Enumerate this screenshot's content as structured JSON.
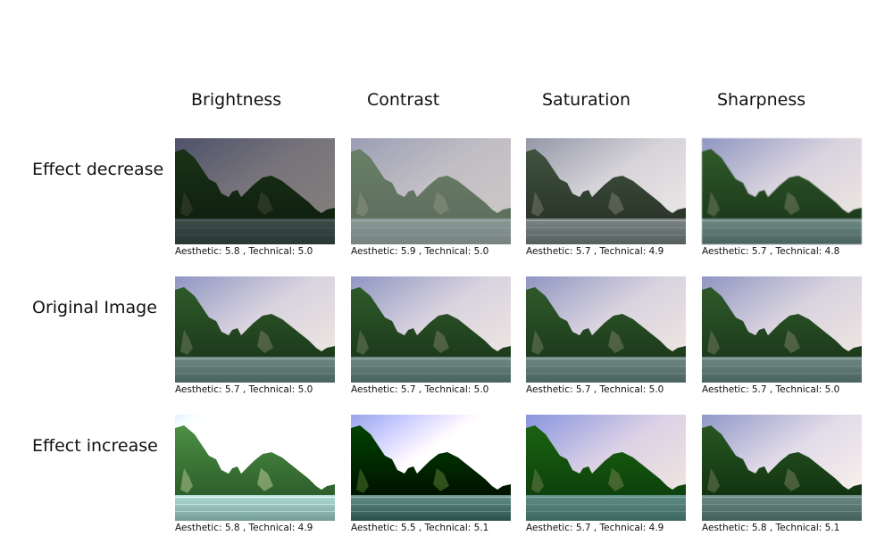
{
  "columns": [
    "Brightness",
    "Contrast",
    "Saturation",
    "Sharpness"
  ],
  "rows": [
    {
      "label": "Effect decrease",
      "cells": [
        {
          "caption": "Aesthetic: 5.8 , Technical: 5.0"
        },
        {
          "caption": "Aesthetic: 5.9 , Technical: 5.0"
        },
        {
          "caption": "Aesthetic: 5.7 , Technical: 4.9"
        },
        {
          "caption": "Aesthetic: 5.7 , Technical: 4.8"
        }
      ]
    },
    {
      "label": "Original Image",
      "cells": [
        {
          "caption": "Aesthetic: 5.7 , Technical: 5.0"
        },
        {
          "caption": "Aesthetic: 5.7 , Technical: 5.0"
        },
        {
          "caption": "Aesthetic: 5.7 , Technical: 5.0"
        },
        {
          "caption": "Aesthetic: 5.7 , Technical: 5.0"
        }
      ]
    },
    {
      "label": "Effect increase",
      "cells": [
        {
          "caption": "Aesthetic: 5.8 , Technical: 4.9"
        },
        {
          "caption": "Aesthetic: 5.5 , Technical: 5.1"
        },
        {
          "caption": "Aesthetic: 5.7 , Technical: 4.9"
        },
        {
          "caption": "Aesthetic: 5.8 , Technical: 5.1"
        }
      ]
    }
  ]
}
